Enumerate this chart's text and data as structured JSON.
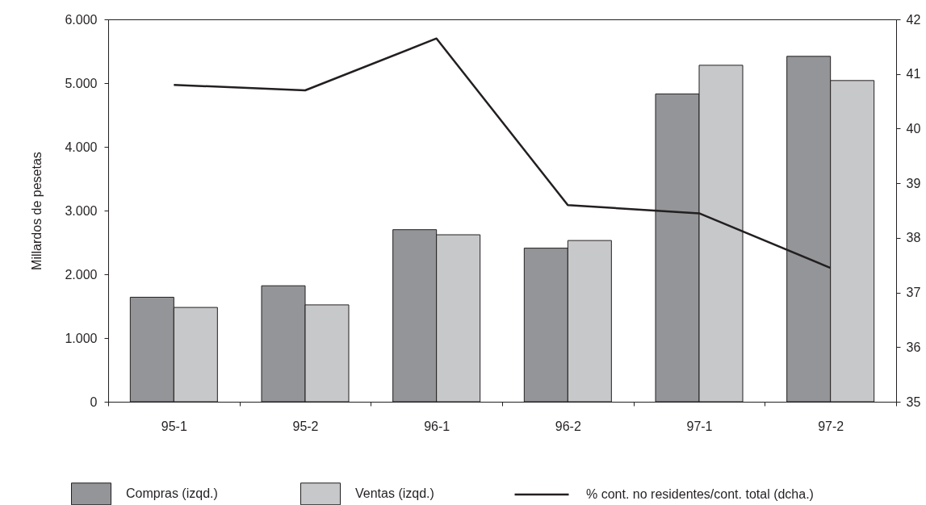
{
  "chart_data": {
    "type": "bar",
    "categories": [
      "95-1",
      "95-2",
      "96-1",
      "96-2",
      "97-1",
      "97-2"
    ],
    "series": [
      {
        "name": "Compras (izqd.)",
        "color": "#939598",
        "values": [
          1640,
          1820,
          2700,
          2410,
          4830,
          5420
        ]
      },
      {
        "name": "Ventas (izqd.)",
        "color": "#c7c8ca",
        "values": [
          1480,
          1520,
          2620,
          2530,
          5280,
          5040
        ]
      },
      {
        "name": "% cont. no residentes/cont. total (dcha.)",
        "type": "line",
        "axis": "y2",
        "color": "#231f20",
        "values": [
          40.8,
          40.7,
          41.65,
          38.6,
          38.45,
          37.45
        ]
      }
    ],
    "ylabel": "Millardos de pesetas",
    "ylim": [
      0,
      6000
    ],
    "yticks": [
      0,
      {
        "value": 1000,
        "label": "1.000"
      },
      {
        "value": 2000,
        "label": "2.000"
      },
      {
        "value": 3000,
        "label": "3.000"
      },
      {
        "value": 4000,
        "label": "4.000"
      },
      {
        "value": 5000,
        "label": "5.000"
      },
      {
        "value": 6000,
        "label": "6.000"
      }
    ],
    "y2lim": [
      35,
      42
    ],
    "y2ticks": [
      35,
      36,
      37,
      38,
      39,
      40,
      41,
      42
    ],
    "legend": "bottom",
    "grid": false
  }
}
